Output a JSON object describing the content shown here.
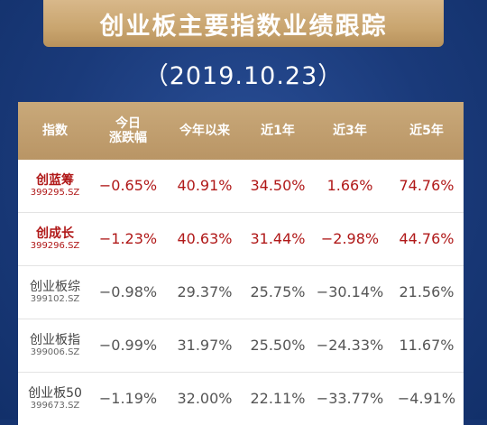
{
  "title": "创业板主要指数业绩跟踪",
  "date": "（2019.10.23）",
  "table": {
    "headers": [
      "指数",
      "今日\n涨跌幅",
      "今年以来",
      "近1年",
      "近3年",
      "近5年"
    ],
    "rows": [
      {
        "name": "创蓝筹",
        "code": "399295.SZ",
        "values": [
          "−0.65%",
          "40.91%",
          "34.50%",
          "1.66%",
          "74.76%"
        ],
        "highlight": true
      },
      {
        "name": "创成长",
        "code": "399296.SZ",
        "values": [
          "−1.23%",
          "40.63%",
          "31.44%",
          "−2.98%",
          "44.76%"
        ],
        "highlight": true
      },
      {
        "name": "创业板综",
        "code": "399102.SZ",
        "values": [
          "−0.98%",
          "29.37%",
          "25.75%",
          "−30.14%",
          "21.56%"
        ],
        "highlight": false
      },
      {
        "name": "创业板指",
        "code": "399006.SZ",
        "values": [
          "−0.99%",
          "31.97%",
          "25.50%",
          "−24.33%",
          "11.67%"
        ],
        "highlight": false
      },
      {
        "name": "创业板50",
        "code": "399673.SZ",
        "values": [
          "−1.19%",
          "32.00%",
          "22.11%",
          "−33.77%",
          "−4.91%"
        ],
        "highlight": false
      }
    ]
  },
  "colors": {
    "background": "#1a3a7a",
    "gold": "#c9a56f",
    "highlight_red": "#b01818"
  }
}
